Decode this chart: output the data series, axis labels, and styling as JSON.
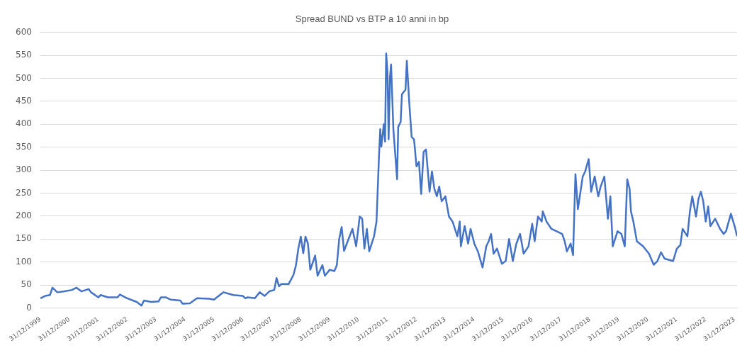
{
  "chart_data": {
    "type": "line",
    "title": "Spread BUND vs BTP a 10 anni in bp",
    "x": [
      "2000-01-01",
      "2000-03-01",
      "2000-05-01",
      "2000-06-01",
      "2000-08-01",
      "2000-11-01",
      "2001-02-01",
      "2001-04-01",
      "2001-06-01",
      "2001-09-01",
      "2001-10-01",
      "2002-01-01",
      "2002-02-01",
      "2002-05-01",
      "2002-09-01",
      "2002-10-01",
      "2003-01-01",
      "2003-05-01",
      "2003-07-01",
      "2003-08-01",
      "2003-11-01",
      "2004-02-01",
      "2004-03-01",
      "2004-05-01",
      "2004-07-01",
      "2004-11-01",
      "2004-12-01",
      "2005-03-01",
      "2005-06-01",
      "2005-11-01",
      "2006-01-01",
      "2006-03-01",
      "2006-05-01",
      "2006-09-01",
      "2007-01-01",
      "2007-02-01",
      "2007-03-01",
      "2007-06-01",
      "2007-08-01",
      "2007-10-01",
      "2007-12-01",
      "2008-02-01",
      "2008-03-01",
      "2008-04-01",
      "2008-05-01",
      "2008-08-01",
      "2008-10-01",
      "2008-11-01",
      "2008-12-01",
      "2009-01-01",
      "2009-02-01",
      "2009-03-01",
      "2009-04-01",
      "2009-05-01",
      "2009-07-01",
      "2009-08-01",
      "2009-10-01",
      "2009-11-01",
      "2010-01-01",
      "2010-03-01",
      "2010-04-01",
      "2010-05-01",
      "2010-06-01",
      "2010-07-01",
      "2010-10-15",
      "2010-12-01",
      "2011-01-15",
      "2011-02-15",
      "2011-03-15",
      "2011-04-15",
      "2011-05-15",
      "2011-07-15",
      "2011-08-15",
      "2011-09-15",
      "2011-10-01",
      "2011-10-15",
      "2011-11-15",
      "2011-12-01",
      "2011-12-15",
      "2012-01-01",
      "2012-01-15",
      "2012-02-01",
      "2012-02-15",
      "2012-03-15",
      "2012-05-01",
      "2012-05-15",
      "2012-06-15",
      "2012-07-01",
      "2012-08-15",
      "2012-09-01",
      "2012-10-01",
      "2012-11-01",
      "2012-12-01",
      "2013-01-01",
      "2013-02-01",
      "2013-03-01",
      "2013-04-01",
      "2013-05-01",
      "2013-06-15",
      "2013-07-15",
      "2013-08-15",
      "2013-09-15",
      "2013-10-15",
      "2013-11-15",
      "2014-01-01",
      "2014-02-15",
      "2014-04-01",
      "2014-06-01",
      "2014-07-01",
      "2014-07-15",
      "2014-09-01",
      "2014-10-15",
      "2014-11-15",
      "2015-01-01",
      "2015-02-15",
      "2015-04-15",
      "2015-06-01",
      "2015-07-01",
      "2015-08-01",
      "2015-09-01",
      "2015-10-15",
      "2015-12-15",
      "2016-02-01",
      "2016-03-15",
      "2016-05-01",
      "2016-06-15",
      "2016-08-01",
      "2016-09-15",
      "2016-11-15",
      "2017-01-01",
      "2017-02-01",
      "2017-03-15",
      "2017-05-01",
      "2017-05-15",
      "2017-07-01",
      "2017-09-01",
      "2017-11-01",
      "2018-01-15",
      "2018-02-15",
      "2018-03-15",
      "2018-05-01",
      "2018-06-01",
      "2018-07-01",
      "2018-08-01",
      "2018-10-01",
      "2018-11-01",
      "2018-12-15",
      "2019-01-15",
      "2019-03-01",
      "2019-04-15",
      "2019-05-15",
      "2019-07-01",
      "2019-08-15",
      "2019-09-15",
      "2019-10-15",
      "2019-12-15",
      "2020-02-01",
      "2020-03-15",
      "2020-04-15",
      "2020-05-15",
      "2020-06-01",
      "2020-07-01",
      "2020-08-15",
      "2020-11-01",
      "2021-01-15",
      "2021-03-15",
      "2021-05-01",
      "2021-06-15",
      "2021-08-01",
      "2021-11-15",
      "2022-01-01",
      "2022-02-15",
      "2022-03-15",
      "2022-05-15",
      "2022-06-15",
      "2022-07-15",
      "2022-09-01",
      "2022-10-01",
      "2022-11-01",
      "2022-12-01",
      "2023-01-01",
      "2023-02-01",
      "2023-03-01",
      "2023-05-01",
      "2023-07-01",
      "2023-08-15",
      "2023-09-15",
      "2023-11-15",
      "2024-01-01",
      "2024-02-01"
    ],
    "series": [
      {
        "color": "#4472c4",
        "values": [
          21,
          26,
          28,
          44,
          34,
          36,
          39,
          44,
          36,
          41,
          34,
          23,
          28,
          23,
          23,
          29,
          21,
          13,
          5,
          16,
          13,
          14,
          23,
          23,
          18,
          16,
          9,
          10,
          21,
          20,
          18,
          26,
          34,
          28,
          26,
          21,
          23,
          21,
          34,
          26,
          36,
          39,
          65,
          47,
          52,
          52,
          72,
          93,
          129,
          155,
          119,
          155,
          140,
          83,
          114,
          70,
          93,
          70,
          83,
          80,
          93,
          150,
          176,
          124,
          172,
          134,
          199,
          194,
          129,
          172,
          123,
          156,
          188,
          329,
          389,
          351,
          400,
          362,
          554,
          513,
          367,
          502,
          530,
          389,
          280,
          394,
          405,
          465,
          475,
          538,
          448,
          372,
          367,
          308,
          318,
          248,
          340,
          345,
          253,
          297,
          259,
          243,
          264,
          232,
          243,
          199,
          188,
          156,
          188,
          134,
          178,
          140,
          172,
          140,
          123,
          88,
          134,
          145,
          161,
          118,
          129,
          96,
          102,
          150,
          102,
          140,
          161,
          118,
          134,
          183,
          145,
          199,
          188,
          210,
          188,
          172,
          167,
          161,
          145,
          123,
          140,
          115,
          291,
          215,
          286,
          297,
          324,
          253,
          286,
          243,
          264,
          286,
          194,
          243,
          134,
          167,
          161,
          134,
          280,
          259,
          210,
          188,
          145,
          134,
          118,
          94,
          102,
          121,
          107,
          102,
          129,
          137,
          172,
          156,
          210,
          243,
          199,
          237,
          253,
          232,
          188,
          221,
          178,
          194,
          172,
          161,
          167,
          205,
          178,
          156
        ]
      }
    ],
    "xlim": [
      "1999-12-31",
      "2024-02-01"
    ],
    "xticks": [
      {
        "value": "1999-12-31",
        "label": "31/12/1999"
      },
      {
        "value": "2000-12-31",
        "label": "31/12/2000"
      },
      {
        "value": "2001-12-31",
        "label": "31/12/2001"
      },
      {
        "value": "2002-12-31",
        "label": "31/12/2002"
      },
      {
        "value": "2003-12-31",
        "label": "31/12/2003"
      },
      {
        "value": "2004-12-31",
        "label": "31/12/2004"
      },
      {
        "value": "2005-12-31",
        "label": "31/12/2005"
      },
      {
        "value": "2006-12-31",
        "label": "31/12/2006"
      },
      {
        "value": "2007-12-31",
        "label": "31/12/2007"
      },
      {
        "value": "2008-12-31",
        "label": "31/12/2008"
      },
      {
        "value": "2009-12-31",
        "label": "31/12/2009"
      },
      {
        "value": "2010-12-31",
        "label": "31/12/2010"
      },
      {
        "value": "2011-12-31",
        "label": "31/12/2011"
      },
      {
        "value": "2012-12-31",
        "label": "31/12/2012"
      },
      {
        "value": "2013-12-31",
        "label": "31/12/2013"
      },
      {
        "value": "2014-12-31",
        "label": "31/12/2014"
      },
      {
        "value": "2015-12-31",
        "label": "31/12/2015"
      },
      {
        "value": "2016-12-31",
        "label": "31/12/2016"
      },
      {
        "value": "2017-12-31",
        "label": "31/12/2017"
      },
      {
        "value": "2018-12-31",
        "label": "31/12/2018"
      },
      {
        "value": "2019-12-31",
        "label": "31/12/2019"
      },
      {
        "value": "2020-12-31",
        "label": "31/12/2020"
      },
      {
        "value": "2021-12-31",
        "label": "31/12/2021"
      },
      {
        "value": "2022-12-31",
        "label": "31/12/2022"
      },
      {
        "value": "2023-12-31",
        "label": "31/12/2023"
      }
    ],
    "ylim": [
      0,
      600
    ],
    "yticks": [
      0,
      50,
      100,
      150,
      200,
      250,
      300,
      350,
      400,
      450,
      500,
      550,
      600
    ],
    "grid": "y",
    "legend": false,
    "marker": "none",
    "line_style": "solid"
  }
}
